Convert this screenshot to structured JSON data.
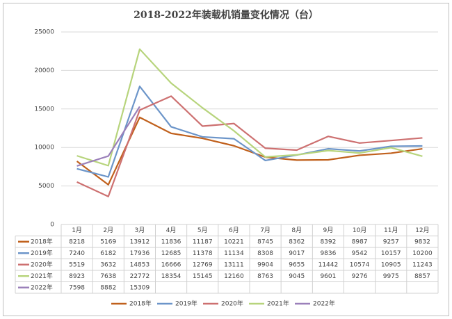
{
  "chart_data": {
    "type": "line",
    "title": "2018-2022年装载机销量变化情况（台）",
    "categories": [
      "1月",
      "2月",
      "3月",
      "4月",
      "5月",
      "6月",
      "7月",
      "8月",
      "9月",
      "10月",
      "11月",
      "12月"
    ],
    "series": [
      {
        "name": "2018年",
        "color": "#c0601c",
        "values": [
          8218,
          5169,
          13912,
          11836,
          11187,
          10221,
          8745,
          8362,
          8392,
          8987,
          9257,
          9832
        ]
      },
      {
        "name": "2019年",
        "color": "#6c95c9",
        "values": [
          7240,
          6182,
          17936,
          12685,
          11378,
          11134,
          8308,
          9017,
          9836,
          9542,
          10157,
          10200
        ]
      },
      {
        "name": "2020年",
        "color": "#cd7070",
        "values": [
          5519,
          3632,
          14853,
          16666,
          12769,
          13111,
          9904,
          9655,
          11442,
          10574,
          10905,
          11243
        ]
      },
      {
        "name": "2021年",
        "color": "#b7d47c",
        "values": [
          8923,
          7638,
          22772,
          18354,
          15145,
          12160,
          8763,
          9045,
          9601,
          9276,
          9975,
          8857
        ]
      },
      {
        "name": "2022年",
        "color": "#9b80ba",
        "values": [
          7598,
          8882,
          15309,
          null,
          null,
          null,
          null,
          null,
          null,
          null,
          null,
          null
        ]
      }
    ],
    "ylim": [
      0,
      25000
    ],
    "yticks": [
      0,
      5000,
      10000,
      15000,
      20000,
      25000
    ],
    "grid": true,
    "legend": "bottom"
  }
}
